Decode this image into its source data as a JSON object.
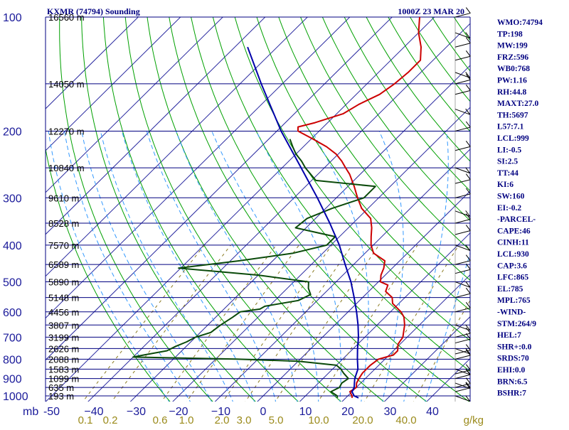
{
  "header": {
    "station": "KXMR (74794) Sounding",
    "time": "1000Z 23 MAR 20"
  },
  "pressure_levels": [
    100,
    200,
    300,
    400,
    500,
    600,
    700,
    800,
    900,
    1000
  ],
  "pressure_labels": [
    "100",
    "200",
    "300",
    "400",
    "500",
    "600",
    "700",
    "800",
    "900",
    "1000"
  ],
  "pressure_unit": "mb",
  "temp_ticks": [
    -50,
    -40,
    -30,
    -20,
    -10,
    0,
    10,
    20,
    30,
    40
  ],
  "temp_labels": [
    "-50",
    "−40",
    "−30",
    "−20",
    "−10",
    "0",
    "10",
    "20",
    "30",
    "40"
  ],
  "mixing_ratio_ticks": [
    0.1,
    0.2,
    0.6,
    1.0,
    2.0,
    3.0,
    5.0,
    10.0,
    20.0,
    40.0
  ],
  "mixing_ratio_labels": [
    "0.1",
    "0.2",
    "0.6",
    "1.0",
    "2.0",
    "3.0",
    "5.0",
    "10.0",
    "20.0",
    "40.0"
  ],
  "mixing_unit": "g/kg",
  "height_labels": [
    {
      "p": 100,
      "text": "16560 m"
    },
    {
      "p": 150,
      "text": "14050 m"
    },
    {
      "p": 200,
      "text": "12270 m"
    },
    {
      "p": 250,
      "text": "10840 m"
    },
    {
      "p": 300,
      "text": "9610 m"
    },
    {
      "p": 350,
      "text": "8528 m"
    },
    {
      "p": 400,
      "text": "7570 m"
    },
    {
      "p": 450,
      "text": "6589 m"
    },
    {
      "p": 500,
      "text": "5890 m"
    },
    {
      "p": 550,
      "text": "5148 m"
    },
    {
      "p": 600,
      "text": "4456 m"
    },
    {
      "p": 650,
      "text": "3807 m"
    },
    {
      "p": 700,
      "text": "3199 m"
    },
    {
      "p": 750,
      "text": "2626 m"
    },
    {
      "p": 800,
      "text": "2088 m"
    },
    {
      "p": 850,
      "text": "1583 m"
    },
    {
      "p": 900,
      "text": "1099 m"
    },
    {
      "p": 950,
      "text": "635 m"
    },
    {
      "p": 1000,
      "text": "193 m"
    }
  ],
  "indices": [
    "WMO:74794",
    "TP:198",
    "MW:199",
    "FRZ:596",
    "WB0:768",
    "PW:1.16",
    "RH:44.8",
    "MAXT:27.0",
    "TH:5697",
    "L57:7.1",
    "LCL:999",
    "LI:-0.5",
    "SI:2.5",
    "TT:44",
    "KI:6",
    "SW:160",
    "EI:-0.2",
    "-PARCEL-",
    "CAPE:46",
    "CINH:11",
    "LCL:930",
    "CAP:3.6",
    "LFC:865",
    "EL:785",
    "MPL:765",
    "-WIND-",
    "STM:264/9",
    "HEL:7",
    "SHR+:0.0",
    "SRDS:70",
    "EHI:0.0",
    "BRN:6.5",
    "BSHR:7"
  ],
  "colors": {
    "temperature": "#cc0000",
    "dewpoint": "#0a4a0a",
    "parcel": "#0000aa",
    "isobar": "#000080",
    "isotherm": "#2a2aa0",
    "dry_adiabat": "#00a000",
    "moist_adiabat": "#3399ff",
    "mixing_ratio": "#8a7a20",
    "text": "#000080"
  },
  "chart_data": {
    "type": "line",
    "title": "KXMR (74794) Sounding",
    "subtitle": "1000Z 23 MAR 20",
    "xlabel": "",
    "ylabel": "mb",
    "y_scale": "log",
    "ylim": [
      1050,
      100
    ],
    "xlim": [
      -50,
      50
    ],
    "skew": true,
    "series": [
      {
        "key": "temperature",
        "points": [
          [
            1012,
            21.5
          ],
          [
            1000,
            21.0
          ],
          [
            975,
            19.5
          ],
          [
            950,
            20.0
          ],
          [
            925,
            19.0
          ],
          [
            900,
            18.5
          ],
          [
            870,
            18.0
          ],
          [
            850,
            18.0
          ],
          [
            830,
            18.0
          ],
          [
            800,
            18.5
          ],
          [
            780,
            21.0
          ],
          [
            760,
            21.0
          ],
          [
            730,
            19.5
          ],
          [
            700,
            19.0
          ],
          [
            650,
            16.5
          ],
          [
            620,
            14.5
          ],
          [
            600,
            12.5
          ],
          [
            570,
            8.5
          ],
          [
            550,
            7.0
          ],
          [
            530,
            4.0
          ],
          [
            510,
            3.0
          ],
          [
            500,
            0.5
          ],
          [
            480,
            -1.0
          ],
          [
            460,
            -2.0
          ],
          [
            440,
            -3.5
          ],
          [
            420,
            -8.0
          ],
          [
            400,
            -10.5
          ],
          [
            380,
            -12.5
          ],
          [
            360,
            -14.5
          ],
          [
            340,
            -17.0
          ],
          [
            320,
            -21.5
          ],
          [
            300,
            -25.0
          ],
          [
            280,
            -28.5
          ],
          [
            260,
            -32.5
          ],
          [
            250,
            -35.0
          ],
          [
            240,
            -37.5
          ],
          [
            230,
            -40.5
          ],
          [
            220,
            -44.5
          ],
          [
            210,
            -49.5
          ],
          [
            200,
            -55.0
          ],
          [
            195,
            -56.0
          ],
          [
            190,
            -53.0
          ],
          [
            180,
            -48.5
          ],
          [
            170,
            -47.0
          ],
          [
            160,
            -44.5
          ],
          [
            150,
            -43.5
          ],
          [
            140,
            -43.0
          ],
          [
            130,
            -43.0
          ],
          [
            120,
            -46.0
          ],
          [
            110,
            -50.0
          ],
          [
            100,
            -53.5
          ]
        ]
      },
      {
        "key": "dewpoint",
        "points": [
          [
            1012,
            18.0
          ],
          [
            1000,
            17.5
          ],
          [
            975,
            15.0
          ],
          [
            950,
            16.0
          ],
          [
            925,
            15.5
          ],
          [
            900,
            16.0
          ],
          [
            870,
            13.5
          ],
          [
            850,
            12.0
          ],
          [
            830,
            10.0
          ],
          [
            810,
            0.0
          ],
          [
            800,
            -15.0
          ],
          [
            790,
            -40.0
          ],
          [
            780,
            -38.0
          ],
          [
            760,
            -33.5
          ],
          [
            740,
            -32.5
          ],
          [
            720,
            -31.0
          ],
          [
            700,
            -30.0
          ],
          [
            680,
            -27.5
          ],
          [
            650,
            -27.0
          ],
          [
            620,
            -26.0
          ],
          [
            600,
            -25.5
          ],
          [
            590,
            -21.5
          ],
          [
            580,
            -21.0
          ],
          [
            560,
            -14.5
          ],
          [
            540,
            -13.0
          ],
          [
            520,
            -15.0
          ],
          [
            500,
            -16.5
          ],
          [
            480,
            -30.0
          ],
          [
            460,
            -50.5
          ],
          [
            440,
            -38.0
          ],
          [
            420,
            -27.0
          ],
          [
            400,
            -21.0
          ],
          [
            380,
            -21.0
          ],
          [
            360,
            -32.5
          ],
          [
            340,
            -32.0
          ],
          [
            320,
            -28.5
          ],
          [
            300,
            -23.5
          ],
          [
            280,
            -23.5
          ],
          [
            270,
            -39.0
          ],
          [
            250,
            -44.5
          ],
          [
            240,
            -47.0
          ],
          [
            230,
            -50.0
          ],
          [
            220,
            -52.5
          ],
          [
            210,
            -55.0
          ]
        ]
      },
      {
        "key": "parcel",
        "points": [
          [
            1012,
            23.0
          ],
          [
            1000,
            21.5
          ],
          [
            975,
            20.0
          ],
          [
            950,
            19.5
          ],
          [
            925,
            18.5
          ],
          [
            900,
            17.5
          ],
          [
            850,
            16.0
          ],
          [
            800,
            13.5
          ],
          [
            750,
            11.0
          ],
          [
            700,
            8.5
          ],
          [
            650,
            5.5
          ],
          [
            600,
            2.0
          ],
          [
            550,
            -2.0
          ],
          [
            500,
            -6.5
          ],
          [
            450,
            -12.0
          ],
          [
            400,
            -18.0
          ],
          [
            350,
            -25.5
          ],
          [
            300,
            -34.5
          ],
          [
            250,
            -45.5
          ],
          [
            200,
            -59.0
          ],
          [
            150,
            -75.0
          ],
          [
            120,
            -87.0
          ]
        ]
      }
    ]
  }
}
